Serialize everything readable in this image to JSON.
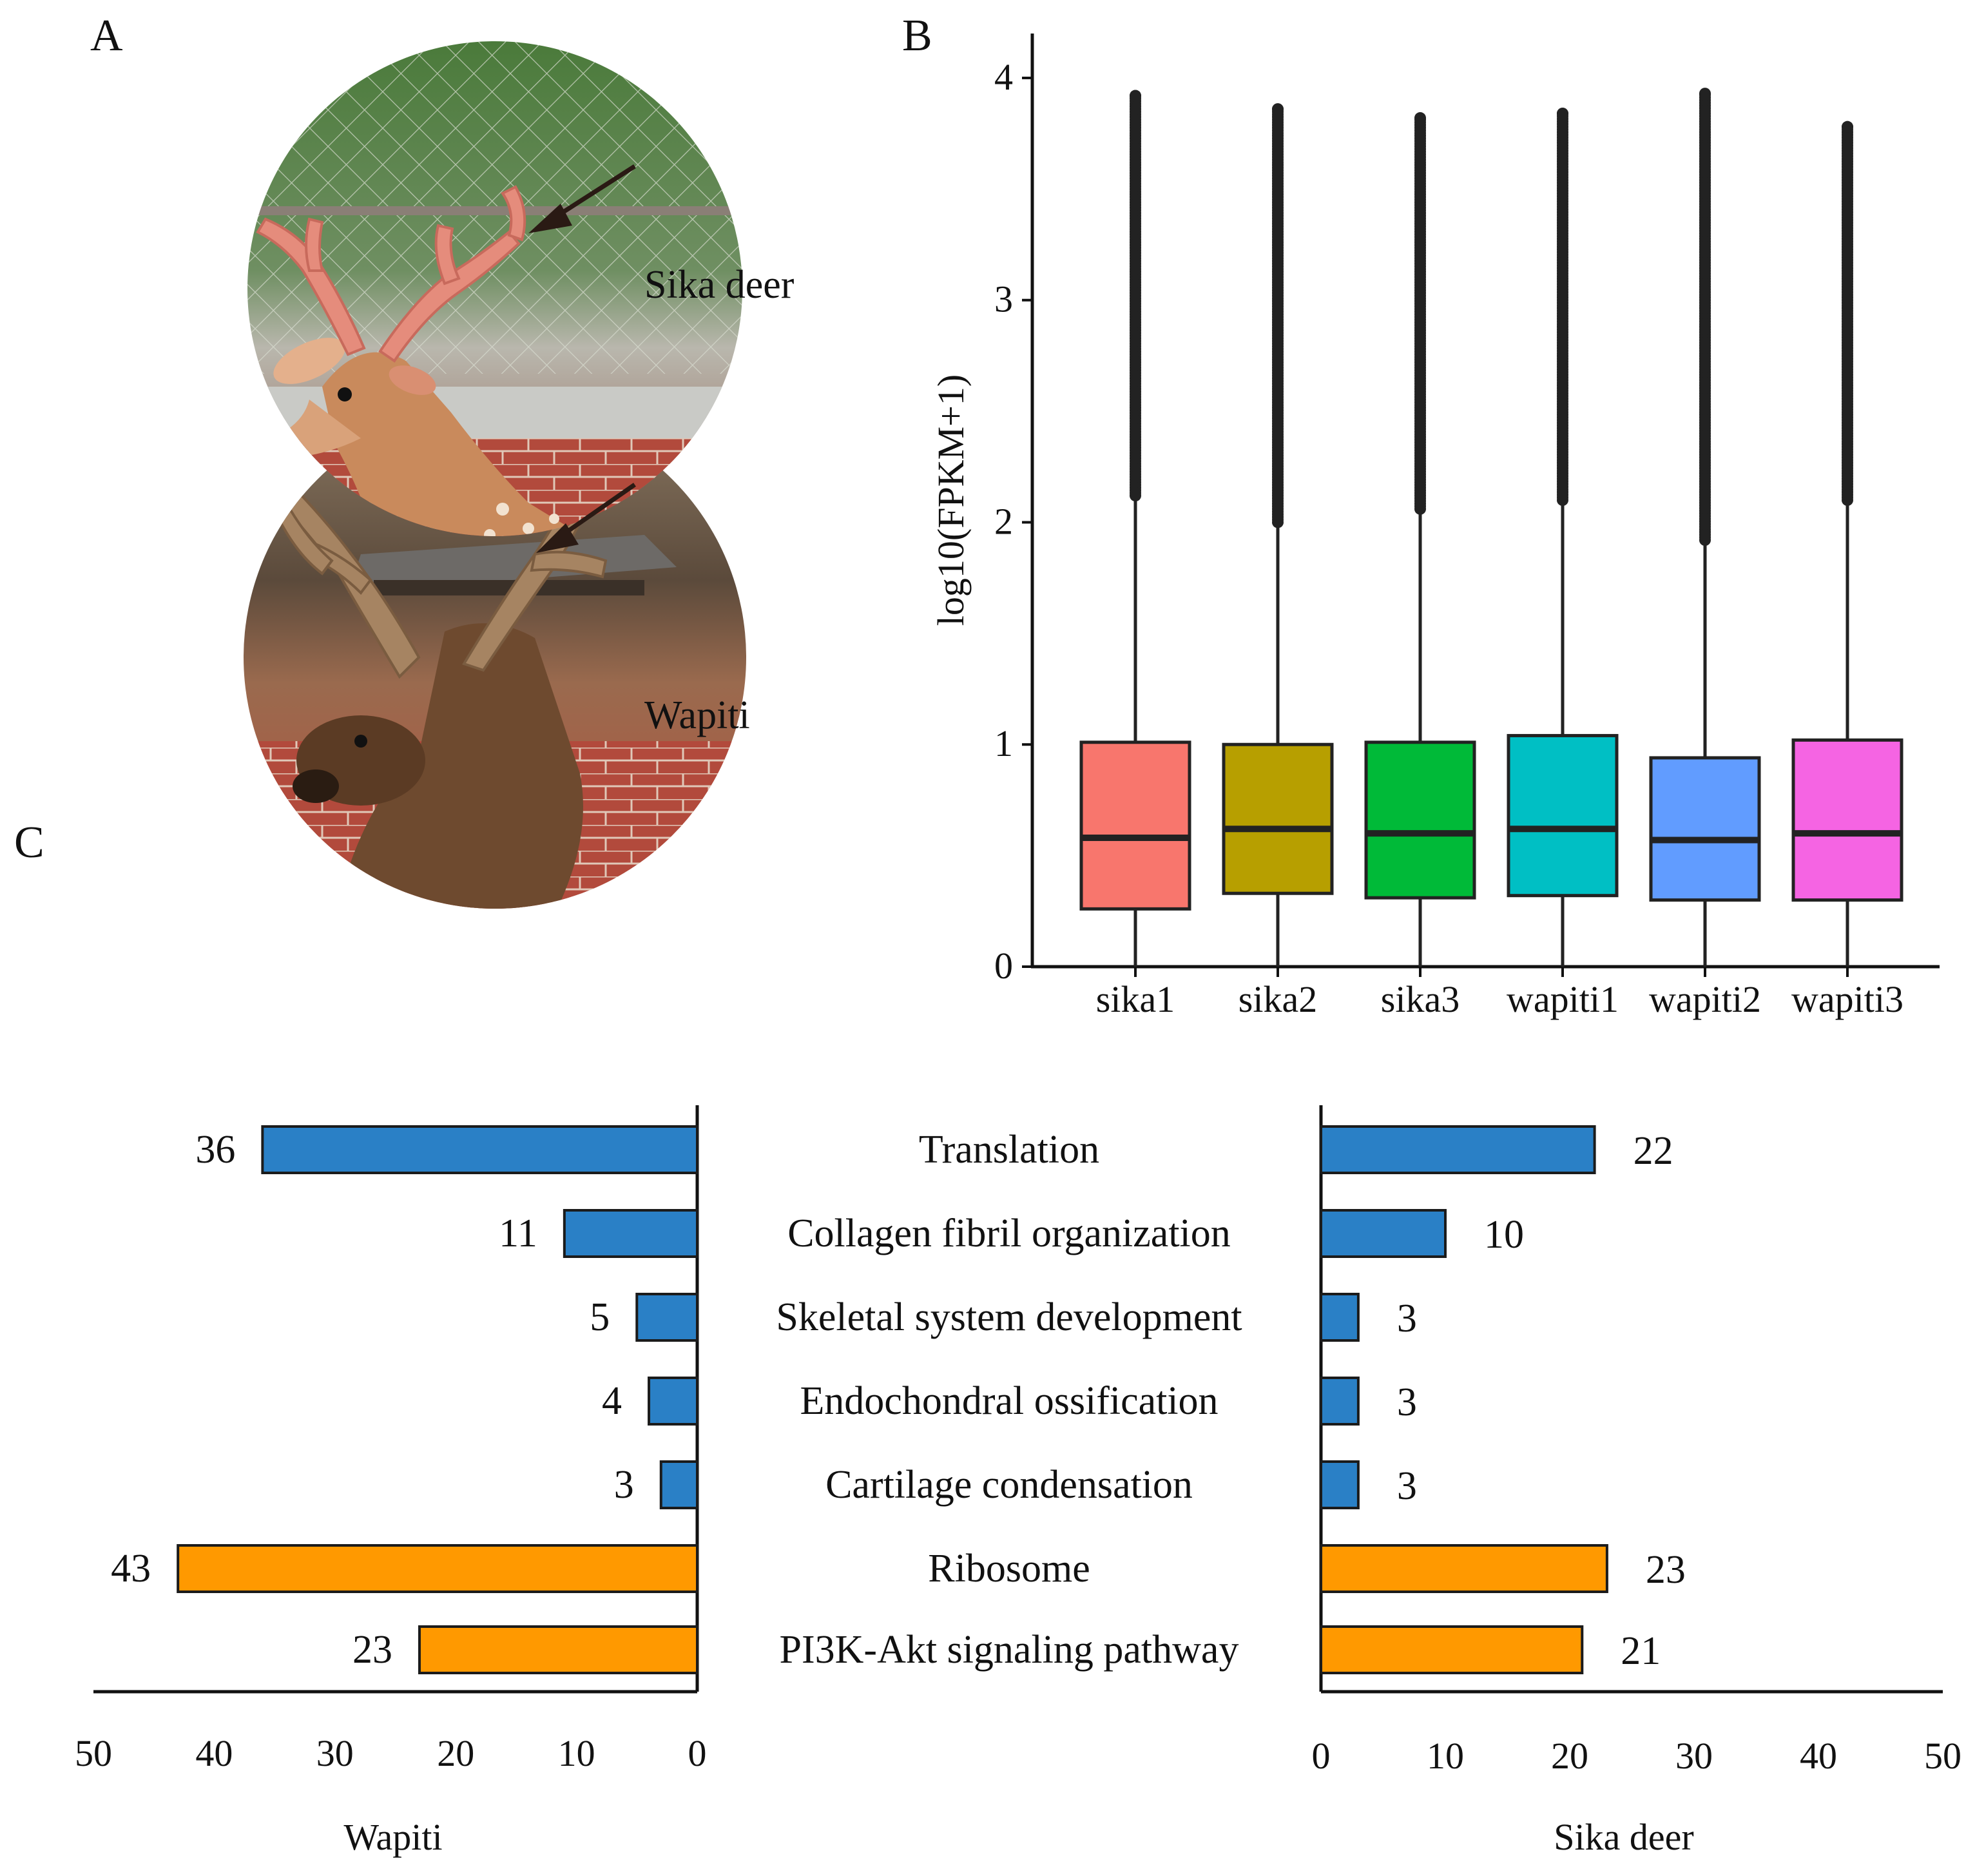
{
  "panels": {
    "a": "A",
    "b": "B",
    "c": "C"
  },
  "photos": [
    {
      "label": "Sika deer",
      "icon": "sika-deer-photo"
    },
    {
      "label": "Wapiti",
      "icon": "wapiti-photo"
    }
  ],
  "colors": {
    "sika1": "#F8766D",
    "sika2": "#B79F00",
    "sika3": "#00BA38",
    "wapiti1": "#00BFC4",
    "wapiti2": "#619CFF",
    "wapiti3": "#F564E3",
    "go_bar": "#2A80C6",
    "kegg_bar": "#FF9900"
  },
  "chart_data": [
    {
      "type": "box",
      "panel": "B",
      "ylabel": "log10(FPKM+1)",
      "ylim": [
        0,
        4.2
      ],
      "yticks": [
        0,
        1,
        2,
        3,
        4
      ],
      "categories": [
        "sika1",
        "sika2",
        "sika3",
        "wapiti1",
        "wapiti2",
        "wapiti3"
      ],
      "boxes": [
        {
          "name": "sika1",
          "q1": 0.26,
          "median": 0.58,
          "q3": 1.01,
          "whisker_low": 0,
          "whisker_high": 2.12,
          "outlier_max": 3.92
        },
        {
          "name": "sika2",
          "q1": 0.33,
          "median": 0.62,
          "q3": 1.0,
          "whisker_low": 0,
          "whisker_high": 2.0,
          "outlier_max": 3.86
        },
        {
          "name": "sika3",
          "q1": 0.31,
          "median": 0.6,
          "q3": 1.01,
          "whisker_low": 0,
          "whisker_high": 2.06,
          "outlier_max": 3.82
        },
        {
          "name": "wapiti1",
          "q1": 0.32,
          "median": 0.62,
          "q3": 1.04,
          "whisker_low": 0,
          "whisker_high": 2.1,
          "outlier_max": 3.84
        },
        {
          "name": "wapiti2",
          "q1": 0.3,
          "median": 0.57,
          "q3": 0.94,
          "whisker_low": 0,
          "whisker_high": 1.92,
          "outlier_max": 3.93
        },
        {
          "name": "wapiti3",
          "q1": 0.3,
          "median": 0.6,
          "q3": 1.02,
          "whisker_low": 0,
          "whisker_high": 2.1,
          "outlier_max": 3.78
        }
      ]
    },
    {
      "type": "bar",
      "panel": "C",
      "orientation": "horizontal-mirrored",
      "categories": [
        "Translation",
        "Collagen fibril organization",
        "Skeletal system development",
        "Endochondral ossification",
        "Cartilage condensation",
        "Ribosome",
        "PI3K-Akt signaling pathway"
      ],
      "bar_type": [
        "go",
        "go",
        "go",
        "go",
        "go",
        "kegg",
        "kegg"
      ],
      "series": [
        {
          "name": "Wapiti",
          "values": [
            36,
            11,
            5,
            4,
            3,
            43,
            23
          ],
          "labels": [
            "36",
            "11",
            "5",
            "4",
            "3",
            "43",
            "23"
          ]
        },
        {
          "name": "Sika deer",
          "values": [
            22,
            10,
            3,
            3,
            3,
            23,
            21
          ],
          "labels": [
            "22",
            "10",
            "3",
            "3",
            "3",
            "23",
            "21"
          ]
        }
      ],
      "xlim": [
        0,
        50
      ],
      "xticks": [
        0,
        10,
        20,
        30,
        40,
        50
      ],
      "xticks_left": [
        "50",
        "40",
        "30",
        "20",
        "10",
        "0"
      ],
      "xticks_right": [
        "0",
        "10",
        "20",
        "30",
        "40",
        "50"
      ],
      "xlabel_left": "Wapiti",
      "xlabel_right": "Sika deer"
    }
  ]
}
